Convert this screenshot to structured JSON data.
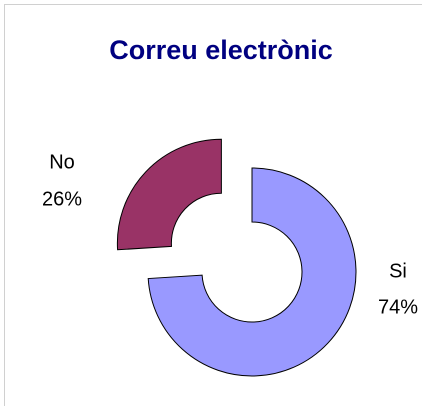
{
  "chart_data": {
    "type": "pie",
    "title": "Correu electrònic",
    "categories": [
      "Si",
      "No"
    ],
    "values": [
      74,
      26
    ],
    "value_labels": [
      "74%",
      "26%"
    ],
    "colors": [
      "#9999ff",
      "#993366"
    ],
    "donut": true,
    "exploded": [
      false,
      true
    ]
  }
}
